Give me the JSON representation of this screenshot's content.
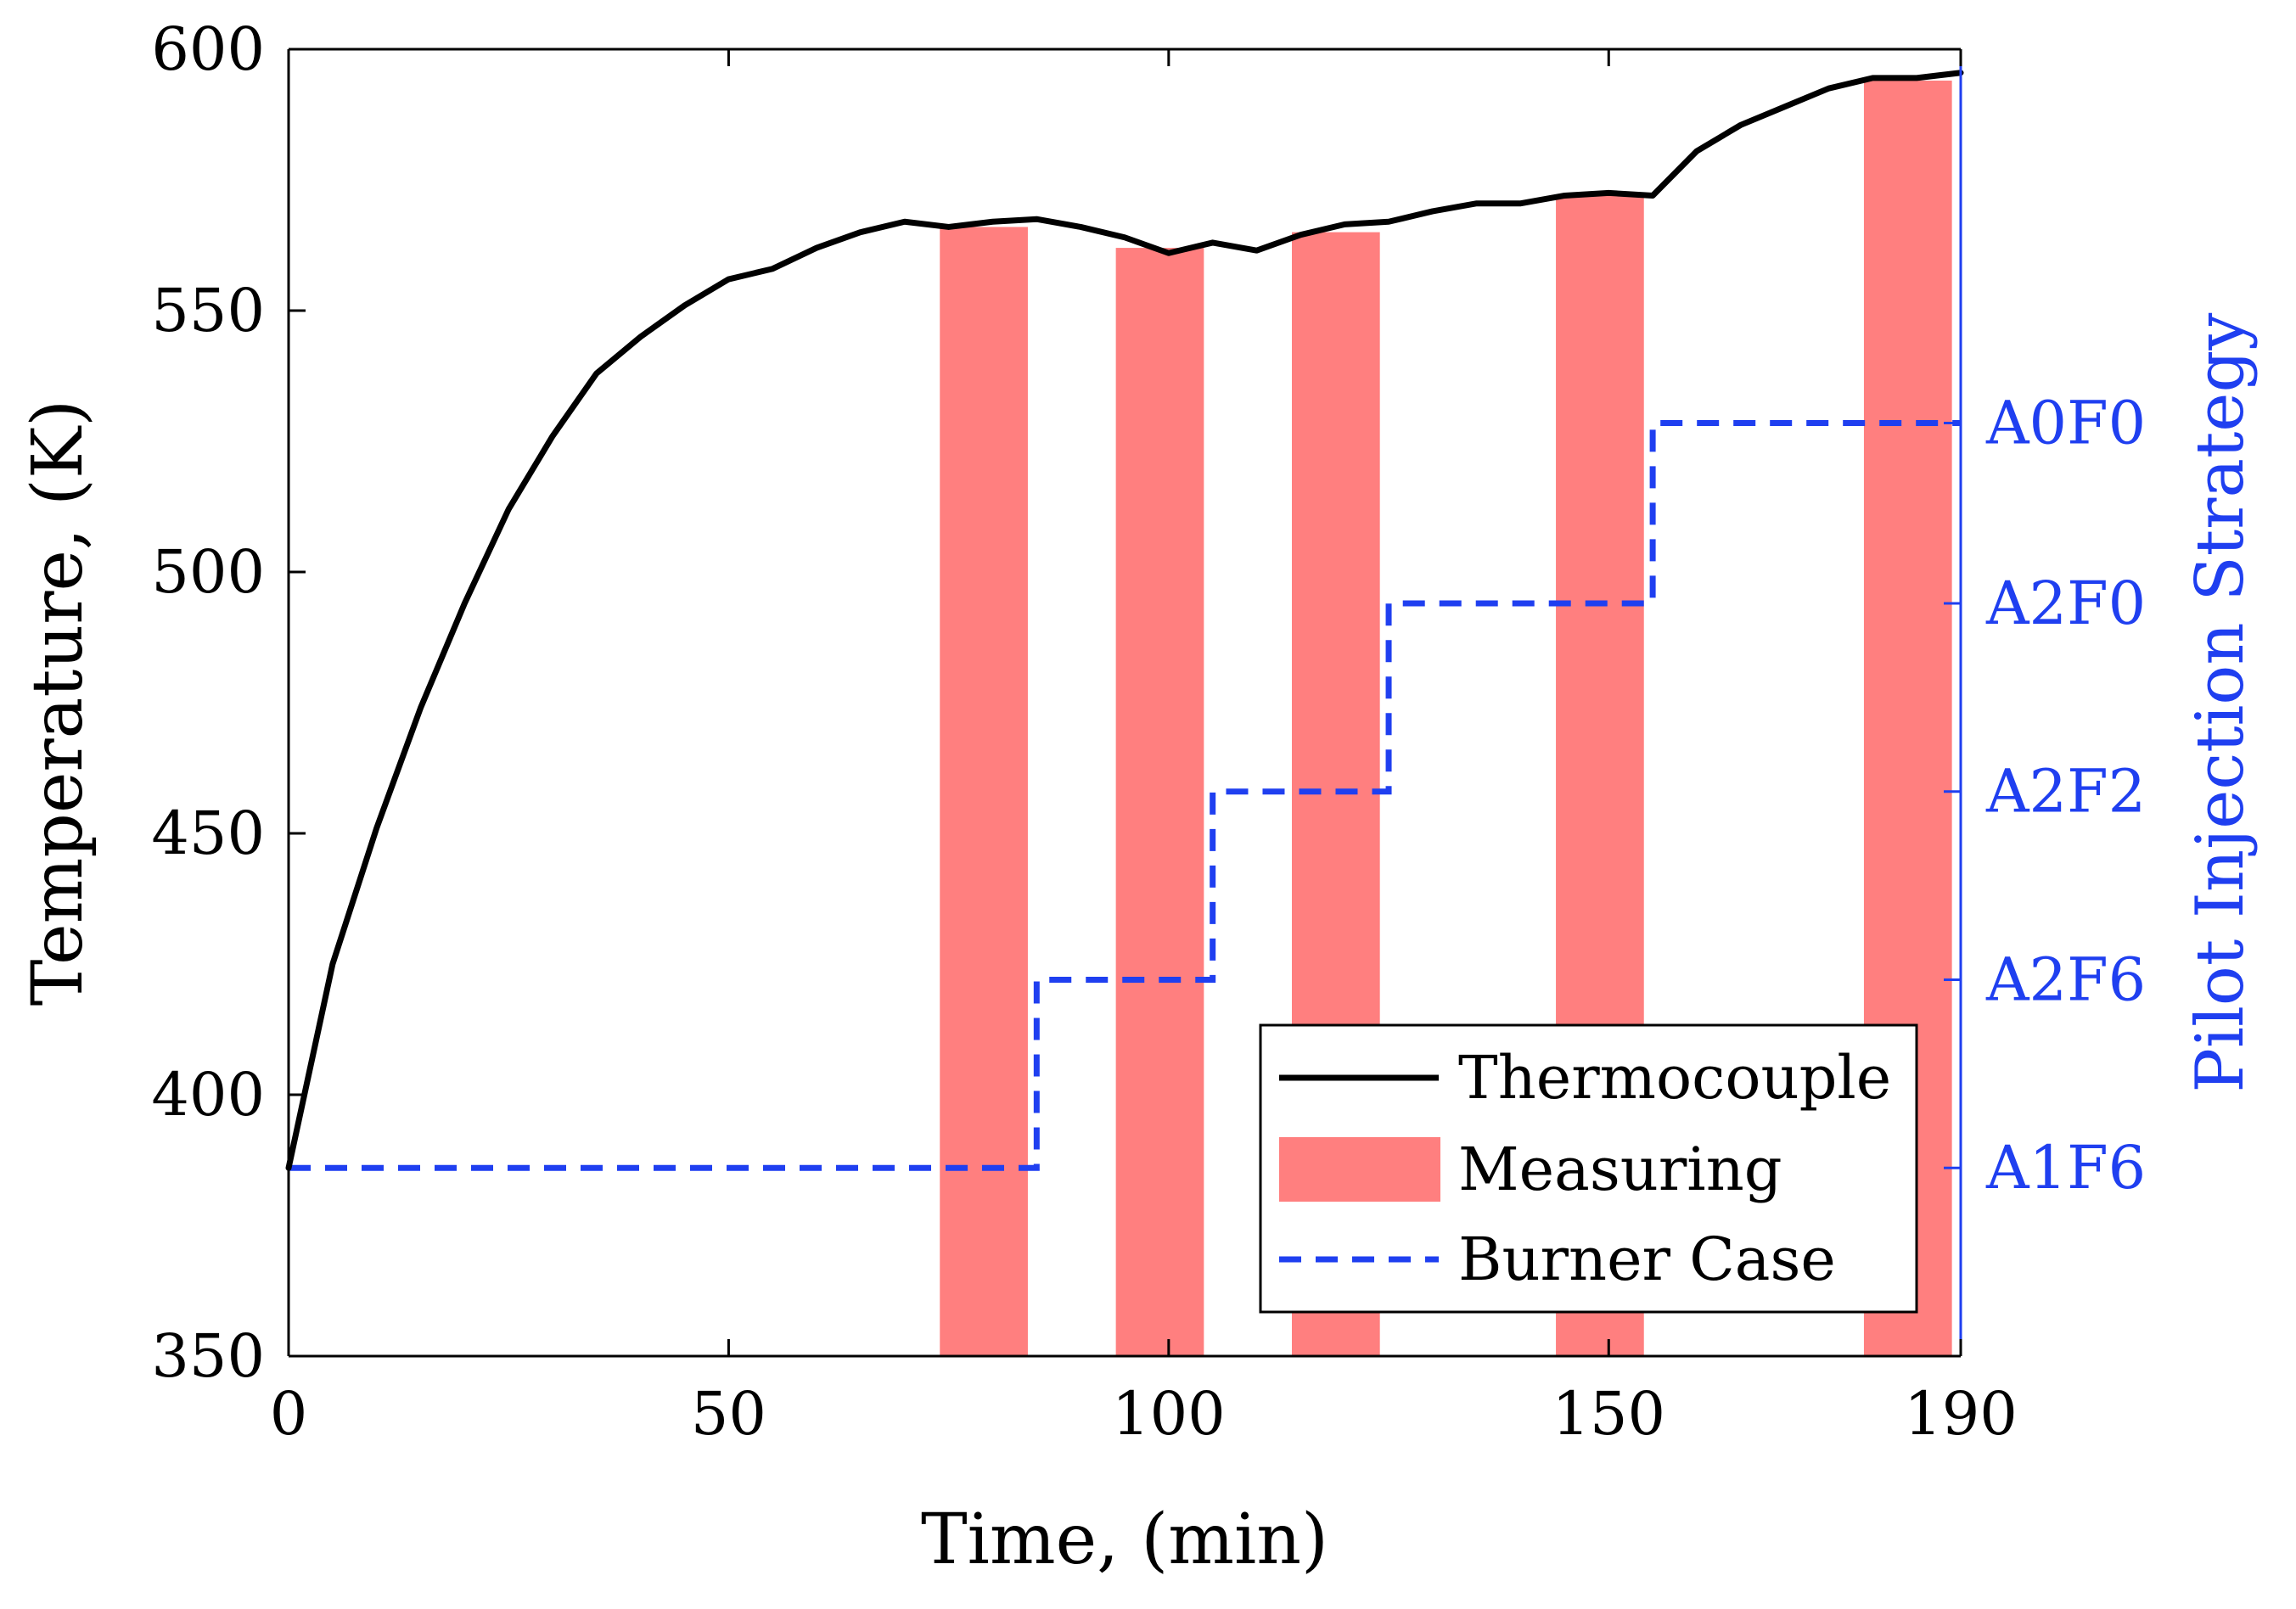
{
  "chart_data": {
    "type": "line",
    "xlabel": "Time, (min)",
    "ylabel_left": "Temperature, (K)",
    "ylabel_right": "Pilot Injection Strategy",
    "xlim": [
      0,
      190
    ],
    "ylim": [
      350,
      600
    ],
    "x_ticks": [
      0,
      50,
      100,
      150,
      190
    ],
    "y_ticks": [
      350,
      400,
      450,
      500,
      550,
      600
    ],
    "right_axis": {
      "categories": [
        "A1F6",
        "A2F6",
        "A2F2",
        "A2F0",
        "A0F0"
      ],
      "color": "#1f3ff0"
    },
    "grid": false,
    "legend": {
      "position": "bottom-right",
      "entries": [
        "Thermocouple",
        "Measuring",
        "Burner Case"
      ]
    },
    "series": [
      {
        "name": "Thermocouple",
        "color": "#000000",
        "style": "solid",
        "x": [
          0,
          5,
          10,
          15,
          20,
          25,
          30,
          35,
          40,
          45,
          50,
          55,
          60,
          65,
          70,
          75,
          80,
          85,
          90,
          95,
          100,
          105,
          110,
          115,
          120,
          125,
          130,
          135,
          140,
          145,
          150,
          155,
          160,
          165,
          170,
          175,
          180,
          185,
          190
        ],
        "y": [
          386,
          425,
          451,
          474,
          494,
          512,
          526,
          538,
          545,
          551,
          556,
          558,
          562,
          565,
          567,
          566,
          567,
          567.5,
          566,
          564,
          561,
          563,
          561.5,
          564.5,
          566.5,
          567,
          569,
          570.5,
          570.5,
          572,
          572.5,
          572,
          580.5,
          585.5,
          589,
          592.5,
          594.5,
          594.5,
          595.5
        ]
      },
      {
        "name": "Measuring",
        "color": "#ff7f7f",
        "style": "bars",
        "intervals": [
          {
            "x0": 74,
            "x1": 84,
            "top": 566
          },
          {
            "x0": 94,
            "x1": 104,
            "top": 562
          },
          {
            "x0": 114,
            "x1": 124,
            "top": 565
          },
          {
            "x0": 144,
            "x1": 154,
            "top": 572
          },
          {
            "x0": 179,
            "x1": 189,
            "top": 594
          }
        ]
      },
      {
        "name": "Burner Case",
        "color": "#1f3ff0",
        "style": "dashed",
        "steps": [
          {
            "x0": 0,
            "x1": 85,
            "category": "A1F6"
          },
          {
            "x0": 85,
            "x1": 105,
            "category": "A2F6"
          },
          {
            "x0": 105,
            "x1": 125,
            "category": "A2F2"
          },
          {
            "x0": 125,
            "x1": 155,
            "category": "A2F0"
          },
          {
            "x0": 155,
            "x1": 190,
            "category": "A0F0"
          }
        ]
      }
    ]
  }
}
